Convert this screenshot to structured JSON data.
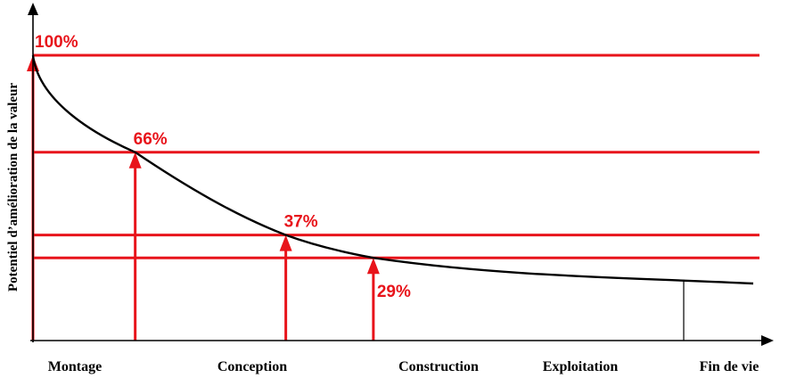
{
  "chart_data": {
    "type": "line",
    "title": "",
    "ylabel": "Potentiel d’amélioration de la valeur",
    "xlabel": "",
    "phases": [
      "Montage",
      "Conception",
      "Construction",
      "Exploitation",
      "Fin de vie"
    ],
    "ylim": [
      0,
      100
    ],
    "curve_end_value": 20,
    "markers": [
      {
        "label": "100%",
        "value": 100,
        "phase_position": 0.0
      },
      {
        "label": "66%",
        "value": 66,
        "phase_position": 0.34
      },
      {
        "label": "37%",
        "value": 37,
        "phase_position": 1.18
      },
      {
        "label": "29%",
        "value": 29,
        "phase_position": 1.65
      }
    ],
    "colors": {
      "reference": "#e8141b",
      "curve": "#000000",
      "axis": "#000000"
    },
    "grid": false,
    "legend": "none"
  }
}
